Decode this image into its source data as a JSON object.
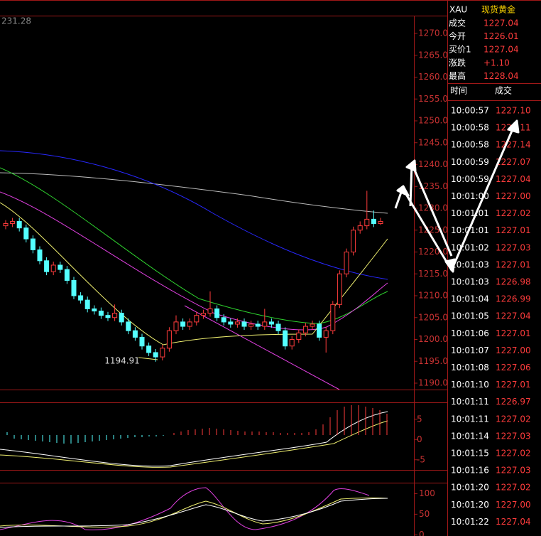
{
  "chart_data": {
    "type": "candlestick",
    "corner_label": "231.28",
    "annotation": "1194.91",
    "open": [
      1226,
      1226.5,
      1227,
      1225.5,
      1223,
      1220.5,
      1218,
      1215.5,
      1217,
      1216,
      1213.5,
      1210,
      1209,
      1207,
      1206.5,
      1205.5,
      1205,
      1206,
      1204,
      1202,
      1200.5,
      1198.5,
      1197,
      1196,
      1198,
      1202,
      1204,
      1203,
      1204,
      1205.5,
      1206,
      1207,
      1205,
      1204,
      1203.5,
      1204,
      1203,
      1203.5,
      1203,
      1204,
      1203.5,
      1202,
      1198.5,
      1200,
      1201.5,
      1203,
      1203.5,
      1200.5,
      1202,
      1208,
      1215,
      1220,
      1225,
      1226,
      1227.5,
      1226.5
    ],
    "high": [
      1227.3,
      1227.8,
      1227.8,
      1226.3,
      1223.8,
      1221.3,
      1218.8,
      1217.8,
      1217.8,
      1216.8,
      1214.3,
      1210.8,
      1209.8,
      1207.8,
      1207.3,
      1206.3,
      1208,
      1206.8,
      1204.8,
      1202.8,
      1201.3,
      1199.3,
      1197.8,
      1198.8,
      1202.8,
      1205.5,
      1204.8,
      1204.8,
      1206.3,
      1206.8,
      1211,
      1207.8,
      1205.8,
      1204.8,
      1204.8,
      1204.8,
      1204.3,
      1204.3,
      1207,
      1204.8,
      1204.3,
      1202.8,
      1200.8,
      1202.3,
      1203.8,
      1204.3,
      1204.3,
      1202.8,
      1208.8,
      1215.8,
      1220.8,
      1225.8,
      1227,
      1234,
      1229.5,
      1227.8
    ],
    "low": [
      1225.2,
      1225.7,
      1224.7,
      1222.2,
      1219.7,
      1217.2,
      1214.7,
      1214.7,
      1215.2,
      1212.7,
      1209.2,
      1208.2,
      1206.2,
      1205.7,
      1204.7,
      1204.2,
      1204.2,
      1203.2,
      1201.2,
      1199.7,
      1197.7,
      1196.2,
      1194.91,
      1195.2,
      1197.2,
      1201.2,
      1202.2,
      1202.2,
      1203.2,
      1204.7,
      1205.2,
      1204.2,
      1203.2,
      1202.7,
      1202.7,
      1202.2,
      1202.2,
      1202.2,
      1202.2,
      1202.7,
      1201.2,
      1197.7,
      1197.7,
      1199.2,
      1200.7,
      1202.2,
      1199.7,
      1197,
      1201.2,
      1207.2,
      1214.2,
      1219.2,
      1224.2,
      1225.2,
      1225.7,
      1226.2
    ],
    "close": [
      1226.5,
      1227,
      1225.5,
      1223,
      1220.5,
      1218,
      1215.5,
      1217,
      1216,
      1213.5,
      1210,
      1209,
      1207,
      1206.5,
      1205.5,
      1205,
      1206,
      1204,
      1202,
      1200.5,
      1198.5,
      1197,
      1196,
      1198,
      1202,
      1204,
      1203,
      1204,
      1205.5,
      1206,
      1207,
      1205,
      1204,
      1203.5,
      1204,
      1203,
      1203.5,
      1203,
      1204,
      1203.5,
      1202,
      1198.5,
      1200,
      1201.5,
      1203,
      1203.5,
      1200.5,
      1202,
      1208,
      1215,
      1220,
      1225,
      1226,
      1227.5,
      1226.5,
      1227
    ],
    "up_color": "#ff3c3c",
    "down_color": "#54ffff",
    "ylim": [
      1190,
      1270
    ],
    "yticks": [
      {
        "value": 1270,
        "label": "1270.0"
      },
      {
        "value": 1265,
        "label": "1265.0"
      },
      {
        "value": 1260,
        "label": "1260.0"
      },
      {
        "value": 1255,
        "label": "1255.0"
      },
      {
        "value": 1250,
        "label": "1250.0"
      },
      {
        "value": 1245,
        "label": "1245.0"
      },
      {
        "value": 1240,
        "label": "1240.0"
      },
      {
        "value": 1235,
        "label": "1235.0"
      },
      {
        "value": 1230,
        "label": "1230.0"
      },
      {
        "value": 1225,
        "label": "1225.0"
      },
      {
        "value": 1220,
        "label": "1220.0"
      },
      {
        "value": 1215,
        "label": "1215.0"
      },
      {
        "value": 1210,
        "label": "1210.0"
      },
      {
        "value": 1205,
        "label": "1205.0"
      },
      {
        "value": 1200,
        "label": "1200.0"
      },
      {
        "value": 1195,
        "label": "1195.0"
      },
      {
        "value": 1190,
        "label": "1190.0"
      }
    ],
    "macd_ylim": [
      -7.5,
      9
    ],
    "macd_yticks": [
      5,
      0,
      -5
    ],
    "kdj_ylim": [
      -3,
      125
    ],
    "kdj_yticks": [
      100,
      50,
      0
    ]
  },
  "panel": {
    "symbol": "XAU",
    "name": "现货黄金",
    "quotes": [
      [
        "成交",
        "1227.04"
      ],
      [
        "今开",
        "1226.01"
      ],
      [
        "买价1",
        "1227.04"
      ],
      [
        "涨跌",
        "+1.10"
      ],
      [
        "最高",
        "1228.04"
      ]
    ],
    "columns": [
      "时间",
      "成交"
    ],
    "trades": [
      [
        "10:00:57",
        "1227.10"
      ],
      [
        "10:00:58",
        "1227.11"
      ],
      [
        "10:00:58",
        "1227.14"
      ],
      [
        "10:00:59",
        "1227.07"
      ],
      [
        "10:00:59",
        "1227.04"
      ],
      [
        "10:01:00",
        "1227.00"
      ],
      [
        "10:01:01",
        "1227.02"
      ],
      [
        "10:01:01",
        "1227.01"
      ],
      [
        "10:01:02",
        "1227.03"
      ],
      [
        "10:01:03",
        "1227.01"
      ],
      [
        "10:01:03",
        "1226.98"
      ],
      [
        "10:01:04",
        "1226.99"
      ],
      [
        "10:01:05",
        "1227.04"
      ],
      [
        "10:01:06",
        "1227.01"
      ],
      [
        "10:01:07",
        "1227.00"
      ],
      [
        "10:01:08",
        "1227.06"
      ],
      [
        "10:01:10",
        "1227.01"
      ],
      [
        "10:01:11",
        "1226.97"
      ],
      [
        "10:01:11",
        "1227.02"
      ],
      [
        "10:01:14",
        "1227.03"
      ],
      [
        "10:01:15",
        "1227.02"
      ],
      [
        "10:01:16",
        "1227.03"
      ],
      [
        "10:01:20",
        "1227.02"
      ],
      [
        "10:01:20",
        "1227.00"
      ],
      [
        "10:01:22",
        "1227.04"
      ]
    ]
  }
}
